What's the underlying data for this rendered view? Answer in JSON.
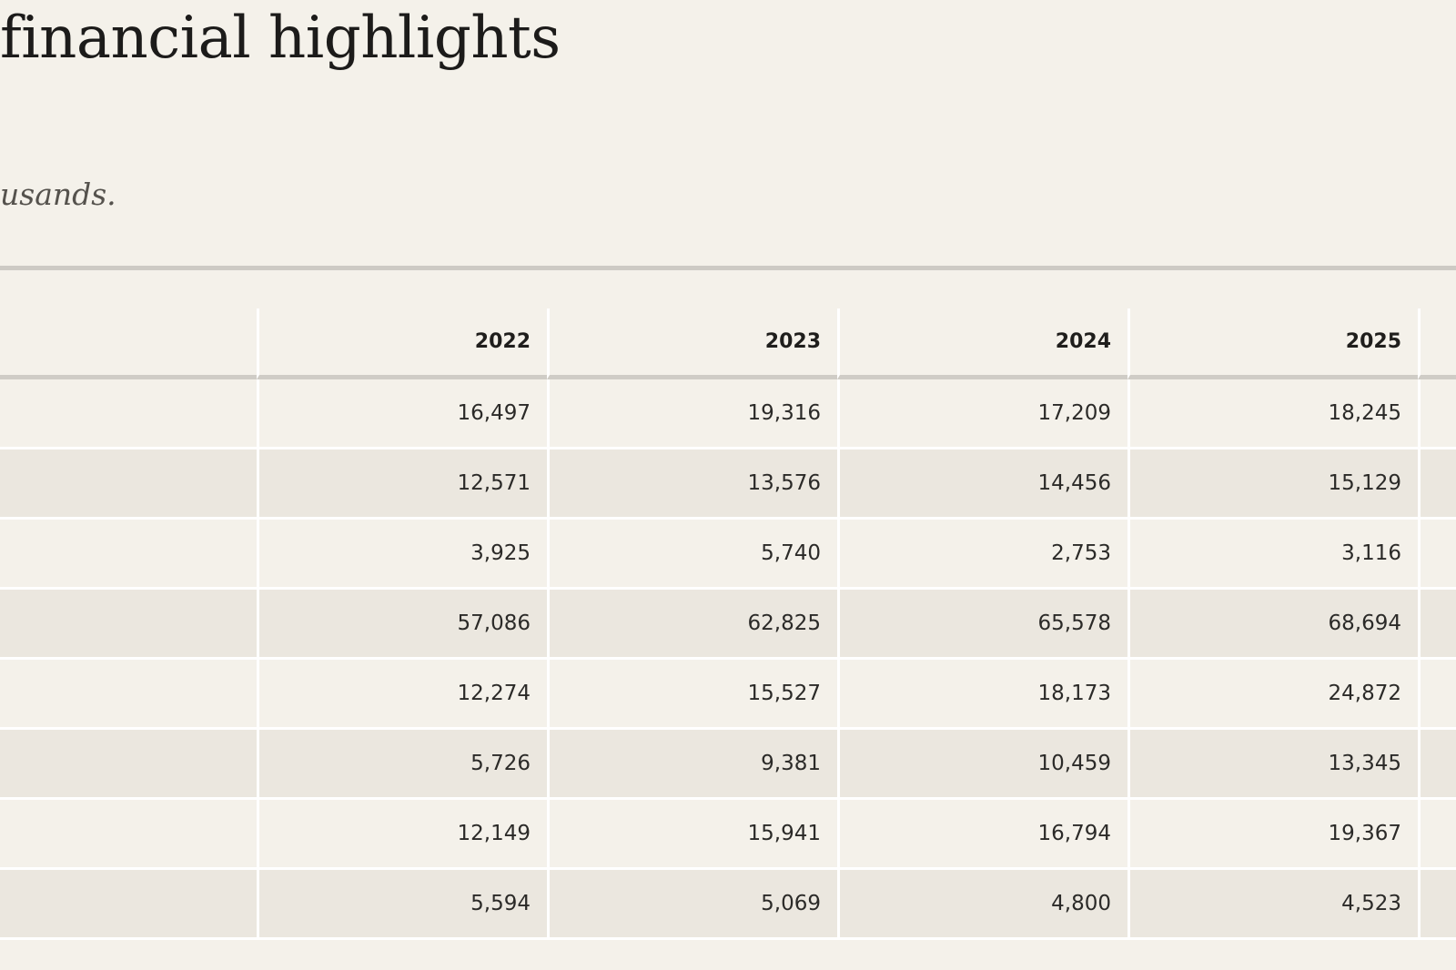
{
  "page": {
    "title": "financial highlights",
    "units_note": "usands."
  },
  "table": {
    "headers": [
      "",
      "2022",
      "2023",
      "2024",
      "2025"
    ],
    "rows": [
      {
        "label": "",
        "values": [
          "16,497",
          "19,316",
          "17,209",
          "18,245"
        ]
      },
      {
        "label": "",
        "values": [
          "12,571",
          "13,576",
          "14,456",
          "15,129"
        ]
      },
      {
        "label": "",
        "values": [
          "3,925",
          "5,740",
          "2,753",
          "3,116"
        ]
      },
      {
        "label": "",
        "values": [
          "57,086",
          "62,825",
          "65,578",
          "68,694"
        ]
      },
      {
        "label": "",
        "values": [
          "12,274",
          "15,527",
          "18,173",
          "24,872"
        ]
      },
      {
        "label": "",
        "values": [
          "5,726",
          "9,381",
          "10,459",
          "13,345"
        ]
      },
      {
        "label": "",
        "values": [
          "12,149",
          "15,941",
          "16,794",
          "19,367"
        ]
      },
      {
        "label": "",
        "values": [
          "5,594",
          "5,069",
          "4,800",
          "4,523"
        ]
      }
    ]
  }
}
